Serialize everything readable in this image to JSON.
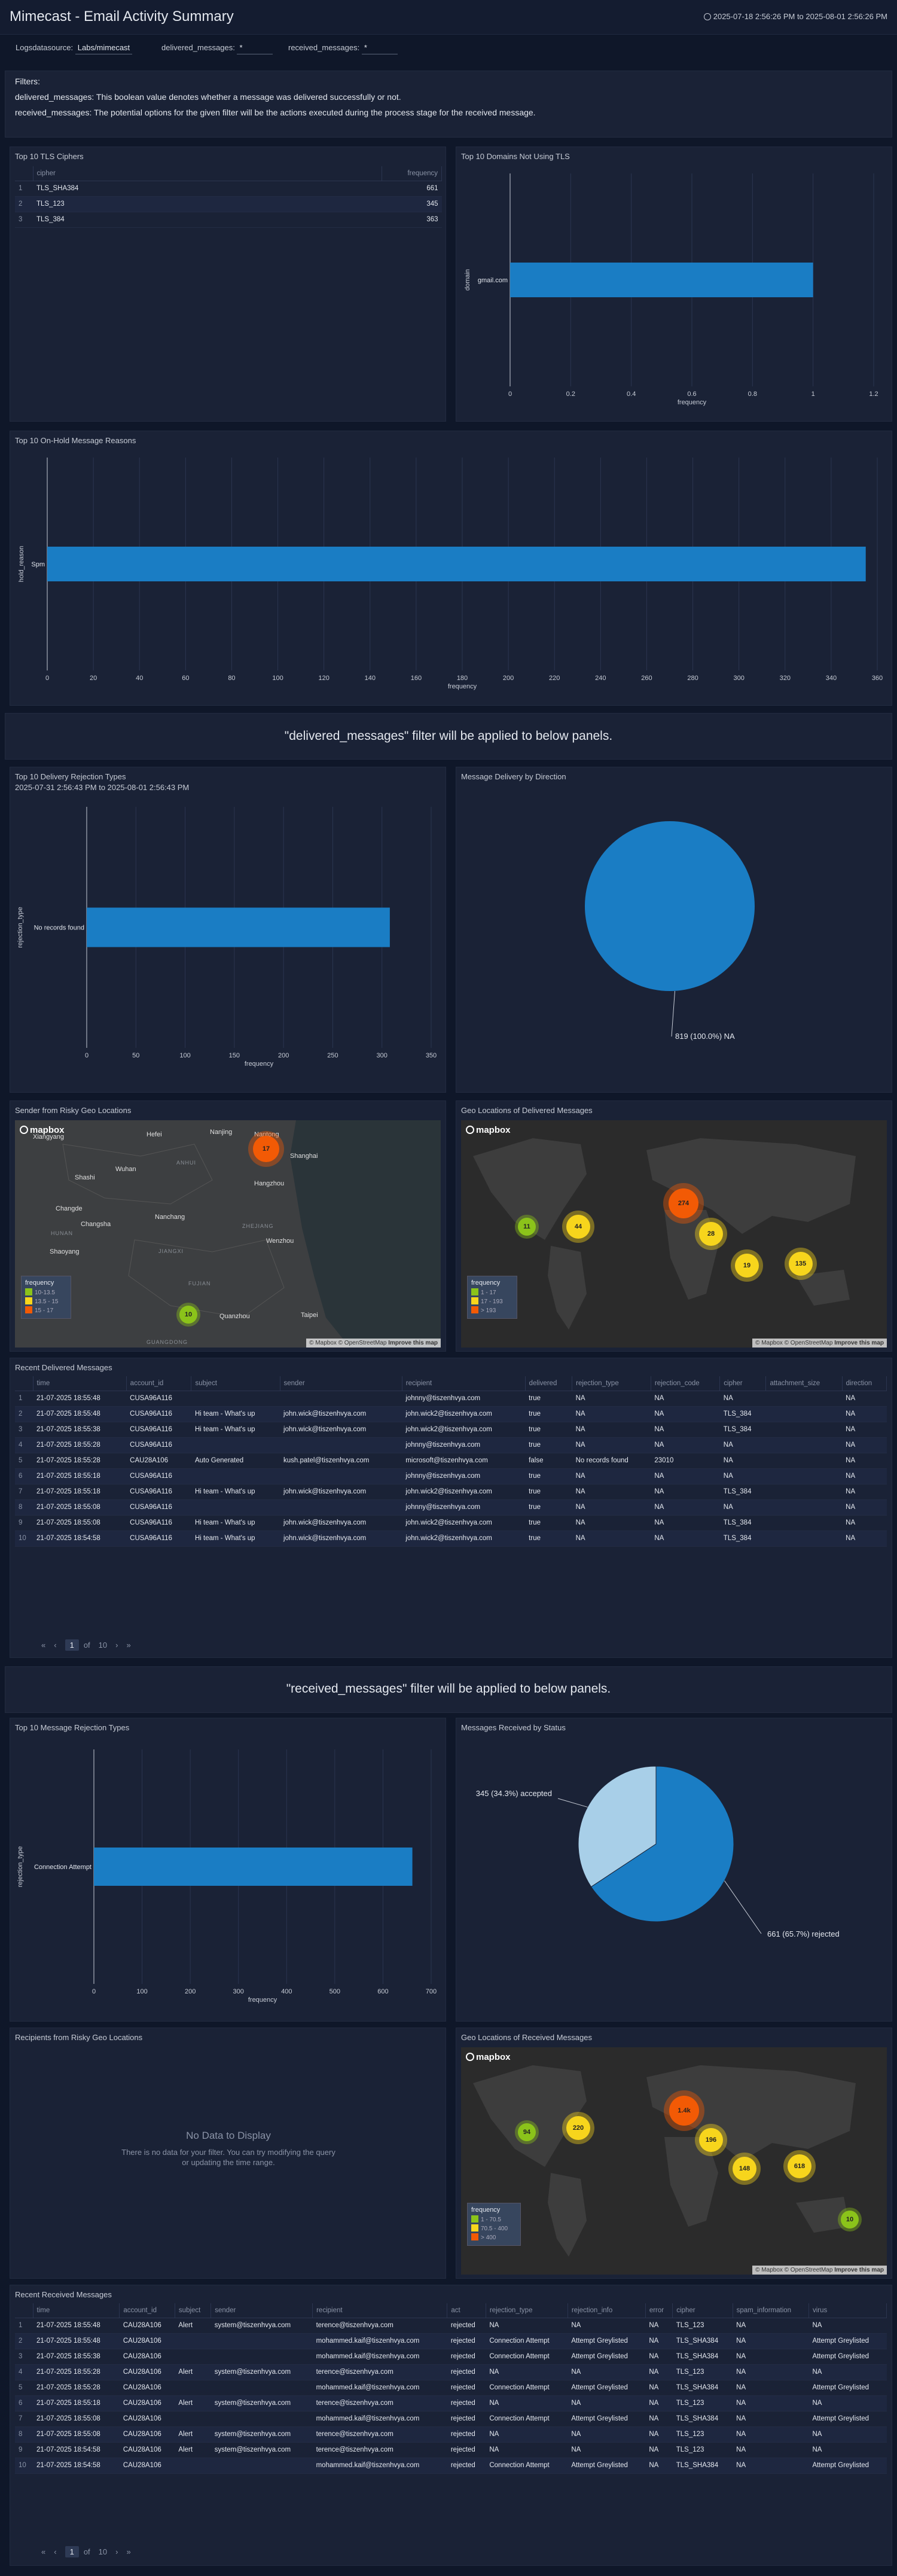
{
  "header": {
    "title": "Mimecast - Email Activity Summary",
    "range": "2025-07-18 2:56:26 PM to 2025-08-01 2:56:26 PM"
  },
  "filters": [
    {
      "label": "Logsdatasource",
      "value": "Labs/mimecast"
    },
    {
      "label": "delivered_messages",
      "value": "*"
    },
    {
      "label": "received_messages",
      "value": "*"
    }
  ],
  "notes": {
    "heading": "Filters:",
    "line1": "delivered_messages: This boolean value denotes whether a message was delivered successfully or not.",
    "line2": "received_messages: The potential options for the given filter will be the actions executed during the process stage for the received message."
  },
  "tls_ciphers": {
    "title": "Top 10 TLS Ciphers",
    "columns": [
      "cipher",
      "frequency"
    ],
    "rows": [
      [
        "1",
        "TLS_SHA384",
        "661"
      ],
      [
        "2",
        "TLS_123",
        "345"
      ],
      [
        "3",
        "TLS_384",
        "363"
      ]
    ]
  },
  "domains_no_tls": {
    "title": "Top 10 Domains Not Using TLS",
    "chart_data": {
      "type": "bar",
      "orientation": "horizontal",
      "categories": [
        "gmail.com"
      ],
      "values": [
        1
      ],
      "xlabel": "frequency",
      "ylabel": "domain",
      "xlim": [
        0,
        1.2
      ],
      "ticks": [
        "0",
        "0.2",
        "0.4",
        "0.6",
        "0.8",
        "1",
        "1.2"
      ]
    }
  },
  "onhold_reasons": {
    "title": "Top 10 On-Hold Message Reasons",
    "chart_data": {
      "type": "bar",
      "orientation": "horizontal",
      "categories": [
        "Spm"
      ],
      "values": [
        355
      ],
      "xlabel": "frequency",
      "ylabel": "hold_reason",
      "xlim": [
        0,
        360
      ],
      "ticks": [
        "0",
        "20",
        "40",
        "60",
        "80",
        "100",
        "120",
        "140",
        "160",
        "180",
        "200",
        "220",
        "240",
        "260",
        "280",
        "300",
        "320",
        "340",
        "360"
      ]
    }
  },
  "banner1": "\"delivered_messages\" filter will be applied to below panels.",
  "delivery_rejections": {
    "title": "Top 10 Delivery Rejection Types",
    "subtitle": "2025-07-31 2:56:43 PM to 2025-08-01 2:56:43 PM",
    "chart_data": {
      "type": "bar",
      "orientation": "horizontal",
      "categories": [
        "No records found"
      ],
      "values": [
        308
      ],
      "xlabel": "frequency",
      "ylabel": "rejection_type",
      "xlim": [
        0,
        350
      ],
      "ticks": [
        "0",
        "50",
        "100",
        "150",
        "200",
        "250",
        "300",
        "350"
      ]
    }
  },
  "delivery_direction": {
    "title": "Message Delivery by Direction",
    "chart_data": {
      "type": "pie",
      "slices": [
        {
          "label": "NA",
          "value": 819
        }
      ],
      "label_text": "819 (100.0%) NA",
      "colors": [
        "#1a7dc4"
      ]
    }
  },
  "sender_geo": {
    "title": "Sender from Risky Geo Locations",
    "logo": "mapbox",
    "attribution": "© Mapbox © OpenStreetMap",
    "improve": "Improve this map",
    "legend_title": "frequency",
    "legend": [
      "10-13.5",
      "13.5 - 15",
      "15 - 17"
    ],
    "labels": [
      "Xiangyang",
      "Hefei",
      "Nanjing",
      "Nantong",
      "Shanghai",
      "Wuhan",
      "Shashi",
      "ANHUI",
      "Hangzhou",
      "Changde",
      "Changsha",
      "Nanchang",
      "ZHEJIANG",
      "HUNAN",
      "Wenzhou",
      "Shaoyang",
      "JIANGXI",
      "FUJIAN",
      "Quanzhou",
      "Taipei",
      "GUANGDONG"
    ],
    "points": [
      {
        "label": "17",
        "value": 17
      },
      {
        "label": "10",
        "value": 10
      }
    ]
  },
  "delivered_geo": {
    "title": "Geo Locations of Delivered Messages",
    "logo": "mapbox",
    "attribution": "© Mapbox © OpenStreetMap",
    "improve": "Improve this map",
    "legend_title": "frequency",
    "legend": [
      "1 - 17",
      "17 - 193",
      "> 193"
    ],
    "points": [
      {
        "label": "274",
        "value": 274
      },
      {
        "label": "11",
        "value": 11
      },
      {
        "label": "44",
        "value": 44
      },
      {
        "label": "28",
        "value": 28
      },
      {
        "label": "19",
        "value": 19
      },
      {
        "label": "135",
        "value": 135
      }
    ]
  },
  "recent_delivered": {
    "title": "Recent Delivered Messages",
    "columns": [
      "time",
      "account_id",
      "subject",
      "sender",
      "recipient",
      "delivered",
      "rejection_type",
      "rejection_code",
      "cipher",
      "attachment_size",
      "direction"
    ],
    "rows": [
      [
        "1",
        "21-07-2025 18:55:48",
        "CUSA96A116",
        "",
        "",
        "johnny@tiszenhvya.com",
        "true",
        "NA",
        "NA",
        "NA",
        "",
        "NA"
      ],
      [
        "2",
        "21-07-2025 18:55:48",
        "CUSA96A116",
        "Hi team - What's up",
        "john.wick@tiszenhvya.com",
        "john.wick2@tiszenhvya.com",
        "true",
        "NA",
        "NA",
        "TLS_384",
        "",
        "NA"
      ],
      [
        "3",
        "21-07-2025 18:55:38",
        "CUSA96A116",
        "Hi team - What's up",
        "john.wick@tiszenhvya.com",
        "john.wick2@tiszenhvya.com",
        "true",
        "NA",
        "NA",
        "TLS_384",
        "",
        "NA"
      ],
      [
        "4",
        "21-07-2025 18:55:28",
        "CUSA96A116",
        "",
        "",
        "johnny@tiszenhvya.com",
        "true",
        "NA",
        "NA",
        "NA",
        "",
        "NA"
      ],
      [
        "5",
        "21-07-2025 18:55:28",
        "CAU28A106",
        "Auto Generated",
        "kush.patel@tiszenhvya.com",
        "microsoft@tiszenhvya.com",
        "false",
        "No records found",
        "23010",
        "NA",
        "",
        "NA"
      ],
      [
        "6",
        "21-07-2025 18:55:18",
        "CUSA96A116",
        "",
        "",
        "johnny@tiszenhvya.com",
        "true",
        "NA",
        "NA",
        "NA",
        "",
        "NA"
      ],
      [
        "7",
        "21-07-2025 18:55:18",
        "CUSA96A116",
        "Hi team - What's up",
        "john.wick@tiszenhvya.com",
        "john.wick2@tiszenhvya.com",
        "true",
        "NA",
        "NA",
        "TLS_384",
        "",
        "NA"
      ],
      [
        "8",
        "21-07-2025 18:55:08",
        "CUSA96A116",
        "",
        "",
        "johnny@tiszenhvya.com",
        "true",
        "NA",
        "NA",
        "NA",
        "",
        "NA"
      ],
      [
        "9",
        "21-07-2025 18:55:08",
        "CUSA96A116",
        "Hi team - What's up",
        "john.wick@tiszenhvya.com",
        "john.wick2@tiszenhvya.com",
        "true",
        "NA",
        "NA",
        "TLS_384",
        "",
        "NA"
      ],
      [
        "10",
        "21-07-2025 18:54:58",
        "CUSA96A116",
        "Hi team - What's up",
        "john.wick@tiszenhvya.com",
        "john.wick2@tiszenhvya.com",
        "true",
        "NA",
        "NA",
        "TLS_384",
        "",
        "NA"
      ]
    ],
    "pager": {
      "page": "1",
      "of": "of",
      "total": "10"
    }
  },
  "banner2": "\"received_messages\" filter will be applied to below panels.",
  "message_rejections": {
    "title": "Top 10 Message Rejection Types",
    "chart_data": {
      "type": "bar",
      "orientation": "horizontal",
      "categories": [
        "Connection Attempt"
      ],
      "values": [
        661
      ],
      "xlabel": "frequency",
      "ylabel": "rejection_type",
      "xlim": [
        0,
        700
      ],
      "ticks": [
        "0",
        "100",
        "200",
        "300",
        "400",
        "500",
        "600",
        "700"
      ]
    }
  },
  "received_status": {
    "title": "Messages Received by Status",
    "chart_data": {
      "type": "pie",
      "slices": [
        {
          "label": "rejected",
          "value": 661,
          "text": "661 (65.7%) rejected"
        },
        {
          "label": "accepted",
          "value": 345,
          "text": "345 (34.3%) accepted"
        }
      ],
      "colors": [
        "#1a7dc4",
        "#a8cfe8"
      ]
    }
  },
  "recipients_geo": {
    "title": "Recipients from Risky Geo Locations",
    "nodata_title": "No Data to Display",
    "nodata_text1": "There is no data for your filter. You can try modifying the query",
    "nodata_text2": "or updating the time range."
  },
  "received_geo": {
    "title": "Geo Locations of Received Messages",
    "logo": "mapbox",
    "attribution": "© Mapbox © OpenStreetMap",
    "improve": "Improve this map",
    "legend_title": "frequency",
    "legend": [
      "1 - 70.5",
      "70.5 - 400",
      "> 400"
    ],
    "points": [
      {
        "label": "1.4k",
        "value": 1400
      },
      {
        "label": "94",
        "value": 94
      },
      {
        "label": "220",
        "value": 220
      },
      {
        "label": "196",
        "value": 196
      },
      {
        "label": "148",
        "value": 148
      },
      {
        "label": "618",
        "value": 618
      },
      {
        "label": "10",
        "value": 10
      }
    ]
  },
  "recent_received": {
    "title": "Recent Received Messages",
    "columns": [
      "time",
      "account_id",
      "subject",
      "sender",
      "recipient",
      "act",
      "rejection_type",
      "rejection_info",
      "error",
      "cipher",
      "spam_information",
      "virus"
    ],
    "rows": [
      [
        "1",
        "21-07-2025 18:55:48",
        "CAU28A106",
        "Alert",
        "system@tiszenhvya.com",
        "terence@tiszenhvya.com",
        "rejected",
        "NA",
        "NA",
        "NA",
        "TLS_123",
        "NA",
        "NA"
      ],
      [
        "2",
        "21-07-2025 18:55:48",
        "CAU28A106",
        "",
        "",
        "mohammed.kaif@tiszenhvya.com",
        "rejected",
        "Connection Attempt",
        "Attempt Greylisted",
        "NA",
        "TLS_SHA384",
        "NA",
        "Attempt Greylisted"
      ],
      [
        "3",
        "21-07-2025 18:55:38",
        "CAU28A106",
        "",
        "",
        "mohammed.kaif@tiszenhvya.com",
        "rejected",
        "Connection Attempt",
        "Attempt Greylisted",
        "NA",
        "TLS_SHA384",
        "NA",
        "Attempt Greylisted"
      ],
      [
        "4",
        "21-07-2025 18:55:28",
        "CAU28A106",
        "Alert",
        "system@tiszenhvya.com",
        "terence@tiszenhvya.com",
        "rejected",
        "NA",
        "NA",
        "NA",
        "TLS_123",
        "NA",
        "NA"
      ],
      [
        "5",
        "21-07-2025 18:55:28",
        "CAU28A106",
        "",
        "",
        "mohammed.kaif@tiszenhvya.com",
        "rejected",
        "Connection Attempt",
        "Attempt Greylisted",
        "NA",
        "TLS_SHA384",
        "NA",
        "Attempt Greylisted"
      ],
      [
        "6",
        "21-07-2025 18:55:18",
        "CAU28A106",
        "Alert",
        "system@tiszenhvya.com",
        "terence@tiszenhvya.com",
        "rejected",
        "NA",
        "NA",
        "NA",
        "TLS_123",
        "NA",
        "NA"
      ],
      [
        "7",
        "21-07-2025 18:55:08",
        "CAU28A106",
        "",
        "",
        "mohammed.kaif@tiszenhvya.com",
        "rejected",
        "Connection Attempt",
        "Attempt Greylisted",
        "NA",
        "TLS_SHA384",
        "NA",
        "Attempt Greylisted"
      ],
      [
        "8",
        "21-07-2025 18:55:08",
        "CAU28A106",
        "Alert",
        "system@tiszenhvya.com",
        "terence@tiszenhvya.com",
        "rejected",
        "NA",
        "NA",
        "NA",
        "TLS_123",
        "NA",
        "NA"
      ],
      [
        "9",
        "21-07-2025 18:54:58",
        "CAU28A106",
        "Alert",
        "system@tiszenhvya.com",
        "terence@tiszenhvya.com",
        "rejected",
        "NA",
        "NA",
        "NA",
        "TLS_123",
        "NA",
        "NA"
      ],
      [
        "10",
        "21-07-2025 18:54:58",
        "CAU28A106",
        "",
        "",
        "mohammed.kaif@tiszenhvya.com",
        "rejected",
        "Connection Attempt",
        "Attempt Greylisted",
        "NA",
        "TLS_SHA384",
        "NA",
        "Attempt Greylisted"
      ]
    ],
    "pager": {
      "page": "1",
      "of": "of",
      "total": "10"
    }
  },
  "colors": {
    "bar": "#1a7dc4",
    "green": "#8bc31a",
    "yellow": "#f7d51c",
    "orange": "#f25a05"
  }
}
